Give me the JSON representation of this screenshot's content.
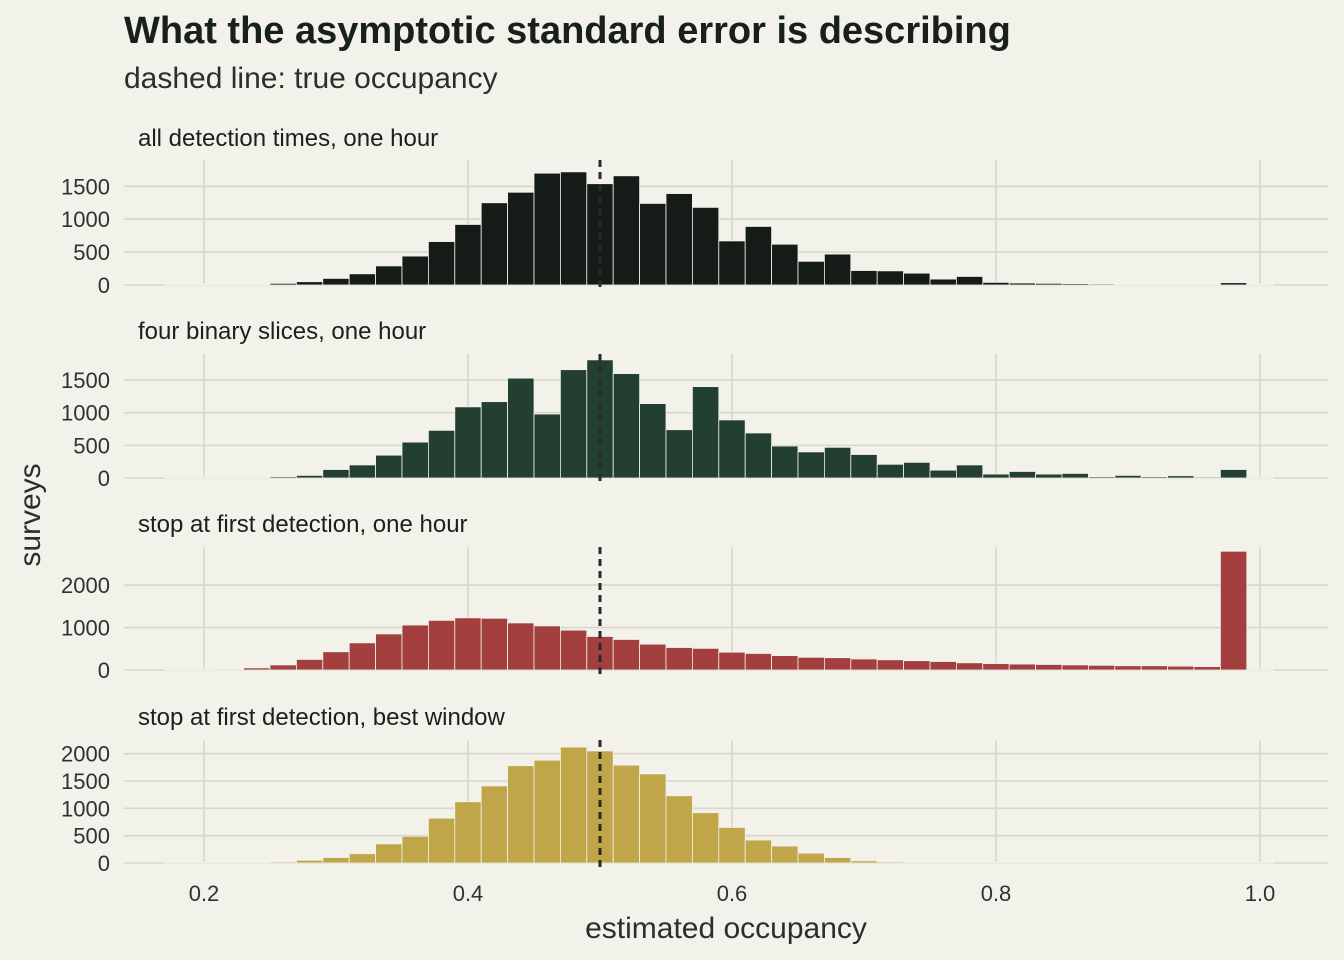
{
  "title": "What the asymptotic standard error is describing",
  "subtitle": "dashed line: true occupancy",
  "chart_data": {
    "type": "histogram-facets",
    "xlabel": "estimated occupancy",
    "ylabel": "surveys",
    "xlim": [
      0.14,
      1.05
    ],
    "x_ticks": [
      "0.2",
      "0.4",
      "0.6",
      "0.8",
      "1.0"
    ],
    "bin_width": 0.02,
    "bin_centers": [
      0.18,
      0.2,
      0.22,
      0.24,
      0.26,
      0.28,
      0.3,
      0.32,
      0.34,
      0.36,
      0.38,
      0.4,
      0.42,
      0.44,
      0.46,
      0.48,
      0.5,
      0.52,
      0.54,
      0.56,
      0.58,
      0.6,
      0.62,
      0.64,
      0.66,
      0.68,
      0.7,
      0.72,
      0.74,
      0.76,
      0.78,
      0.8,
      0.82,
      0.84,
      0.86,
      0.88,
      0.9,
      0.92,
      0.94,
      0.96,
      0.98,
      1.0
    ],
    "reference_line": {
      "x": 0.5,
      "style": "dashed",
      "label": "true occupancy"
    },
    "grid": true,
    "panels": [
      {
        "name": "all detection times, one hour",
        "color": "#151c18",
        "ylim": [
          0,
          1900
        ],
        "y_ticks": [
          0,
          500,
          1000,
          1500
        ],
        "values": [
          3,
          5,
          8,
          12,
          25,
          50,
          100,
          170,
          290,
          440,
          660,
          920,
          1250,
          1410,
          1700,
          1720,
          1540,
          1660,
          1240,
          1390,
          1180,
          670,
          890,
          620,
          360,
          470,
          220,
          215,
          180,
          90,
          130,
          40,
          30,
          25,
          20,
          15,
          10,
          5,
          5,
          3,
          35,
          0
        ]
      },
      {
        "name": "four binary slices, one hour",
        "color": "#223f2f",
        "ylim": [
          0,
          1900
        ],
        "y_ticks": [
          0,
          500,
          1000,
          1500
        ],
        "values": [
          2,
          3,
          5,
          10,
          20,
          40,
          130,
          200,
          350,
          550,
          730,
          1090,
          1170,
          1530,
          980,
          1660,
          1810,
          1600,
          1140,
          740,
          1400,
          890,
          690,
          490,
          400,
          470,
          360,
          210,
          240,
          120,
          200,
          60,
          100,
          60,
          70,
          20,
          40,
          20,
          35,
          15,
          130,
          0
        ]
      },
      {
        "name": "stop at first detection, one hour",
        "color": "#a33f3e",
        "ylim": [
          0,
          2900
        ],
        "y_ticks": [
          0,
          1000,
          2000
        ],
        "values": [
          5,
          10,
          20,
          50,
          120,
          250,
          430,
          640,
          850,
          1060,
          1170,
          1230,
          1220,
          1110,
          1040,
          940,
          790,
          720,
          610,
          530,
          510,
          420,
          390,
          340,
          300,
          290,
          260,
          240,
          220,
          200,
          170,
          150,
          140,
          130,
          120,
          110,
          100,
          100,
          90,
          80,
          2800,
          0
        ]
      },
      {
        "name": "stop at first detection, best window",
        "color": "#c0a648",
        "ylim": [
          0,
          2250
        ],
        "y_ticks": [
          0,
          500,
          1000,
          1500,
          2000
        ],
        "values": [
          2,
          3,
          5,
          10,
          20,
          50,
          100,
          170,
          350,
          490,
          820,
          1120,
          1410,
          1780,
          1880,
          2120,
          2050,
          1790,
          1630,
          1230,
          920,
          650,
          420,
          310,
          180,
          100,
          40,
          20,
          10,
          5,
          2,
          1,
          1,
          0,
          0,
          0,
          0,
          0,
          0,
          0,
          0,
          0
        ]
      }
    ]
  }
}
